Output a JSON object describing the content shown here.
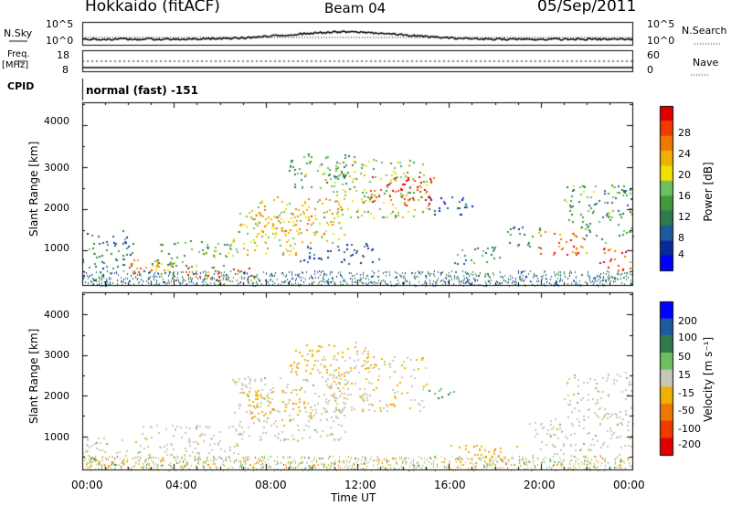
{
  "header": {
    "title": "Hokkaido (fitACF)",
    "beam": "Beam 04",
    "date": "05/Sep/2011"
  },
  "strips": {
    "nsky_label": "N.Sky",
    "nsky_lo": "10^0",
    "nsky_hi": "10^5",
    "nsearch_label": "N.Search",
    "freq_label": "Freq.",
    "freq_unit": "[MHz]",
    "freq_lo": "8",
    "freq_hi": "18",
    "nave_label": "Nave",
    "nave_lo": "0",
    "nave_hi": "60",
    "cpid_label": "CPID",
    "cpid_value": "normal (fast) -151"
  },
  "colors": {
    "power": [
      "#0000ff",
      "#0a2a9a",
      "#1e5aa0",
      "#2e7a4a",
      "#3f9a3c",
      "#6cc060",
      "#f0e000",
      "#f0b000",
      "#f07800",
      "#f03a00",
      "#e00000"
    ],
    "velocity": [
      "#e00000",
      "#f03a00",
      "#f07800",
      "#f0b000",
      "#c8c8b8",
      "#6cc060",
      "#2e7a4a",
      "#1e5aa0",
      "#0000ff"
    ]
  },
  "chart_data": [
    {
      "type": "heatmap",
      "title": "Power",
      "xlabel": "Time UT",
      "ylabel": "Slant Range [km]",
      "xticks": [
        "00:00",
        "04:00",
        "08:00",
        "12:00",
        "16:00",
        "20:00",
        "00:00"
      ],
      "yticks": [
        "1000",
        "2000",
        "3000",
        "4000"
      ],
      "xlim": [
        0,
        24
      ],
      "ylim": [
        180,
        4550
      ],
      "colorbar_label": "Power [dB]",
      "colorbar_ticks": [
        "4",
        "8",
        "12",
        "16",
        "20",
        "24",
        "28"
      ],
      "colorbar_range": [
        0,
        30
      ],
      "regions": [
        {
          "t0": 0.0,
          "t1": 2.2,
          "r0": 500,
          "r1": 1500,
          "value": 9
        },
        {
          "t0": 1.5,
          "t1": 4.0,
          "r0": 450,
          "r1": 800,
          "value": 22
        },
        {
          "t0": 3.0,
          "t1": 6.5,
          "r0": 600,
          "r1": 1300,
          "value": 13
        },
        {
          "t0": 4.5,
          "t1": 7.5,
          "r0": 250,
          "r1": 600,
          "value": 25
        },
        {
          "t0": 6.5,
          "t1": 9.5,
          "r0": 900,
          "r1": 2000,
          "value": 18
        },
        {
          "t0": 7.5,
          "t1": 11.5,
          "r0": 1200,
          "r1": 2300,
          "value": 20
        },
        {
          "t0": 9.0,
          "t1": 12.0,
          "r0": 2500,
          "r1": 3350,
          "value": 12
        },
        {
          "t0": 10.5,
          "t1": 15.0,
          "r0": 1800,
          "r1": 3200,
          "value": 16
        },
        {
          "t0": 12.5,
          "t1": 15.5,
          "r0": 2100,
          "r1": 2800,
          "value": 27
        },
        {
          "t0": 9.5,
          "t1": 13.0,
          "r0": 700,
          "r1": 1200,
          "value": 7
        },
        {
          "t0": 15.0,
          "t1": 17.0,
          "r0": 1850,
          "r1": 2300,
          "value": 5
        },
        {
          "t0": 16.2,
          "t1": 18.5,
          "r0": 700,
          "r1": 1100,
          "value": 10
        },
        {
          "t0": 18.5,
          "t1": 20.0,
          "r0": 1100,
          "r1": 1600,
          "value": 8
        },
        {
          "t0": 19.8,
          "t1": 22.0,
          "r0": 900,
          "r1": 1500,
          "value": 24
        },
        {
          "t0": 21.0,
          "t1": 24.0,
          "r0": 1200,
          "r1": 2600,
          "value": 12
        },
        {
          "t0": 22.5,
          "t1": 24.0,
          "r0": 550,
          "r1": 1100,
          "value": 26
        }
      ]
    },
    {
      "type": "heatmap",
      "title": "Velocity",
      "xlabel": "Time UT",
      "ylabel": "Slant Range [km]",
      "xticks": [
        "00:00",
        "04:00",
        "08:00",
        "12:00",
        "16:00",
        "20:00",
        "00:00"
      ],
      "yticks": [
        "1000",
        "2000",
        "3000",
        "4000"
      ],
      "xlim": [
        0,
        24
      ],
      "ylim": [
        180,
        4550
      ],
      "colorbar_label": "Velocity [m s^-1]",
      "colorbar_ticks": [
        "200",
        "100",
        "50",
        "15",
        "-15",
        "-50",
        "-100",
        "-200"
      ],
      "colorbar_range": [
        -250,
        250
      ],
      "regions": [
        {
          "t0": 0.0,
          "t1": 2.5,
          "r0": 300,
          "r1": 1000,
          "value": 0
        },
        {
          "t0": 2.5,
          "t1": 7.0,
          "r0": 400,
          "r1": 1300,
          "value": 0
        },
        {
          "t0": 6.5,
          "t1": 11.5,
          "r0": 900,
          "r1": 2500,
          "value": 0
        },
        {
          "t0": 9.0,
          "t1": 12.5,
          "r0": 2500,
          "r1": 3350,
          "value": -40
        },
        {
          "t0": 10.5,
          "t1": 15.0,
          "r0": 1600,
          "r1": 3000,
          "value": -20
        },
        {
          "t0": 7.0,
          "t1": 10.0,
          "r0": 1400,
          "r1": 2200,
          "value": -60
        },
        {
          "t0": 15.0,
          "t1": 16.5,
          "r0": 1950,
          "r1": 2200,
          "value": 70
        },
        {
          "t0": 16.0,
          "t1": 19.0,
          "r0": 300,
          "r1": 800,
          "value": -70
        },
        {
          "t0": 19.5,
          "t1": 24.0,
          "r0": 500,
          "r1": 1500,
          "value": 0
        },
        {
          "t0": 21.0,
          "t1": 24.0,
          "r0": 1500,
          "r1": 2600,
          "value": 0
        }
      ]
    }
  ]
}
